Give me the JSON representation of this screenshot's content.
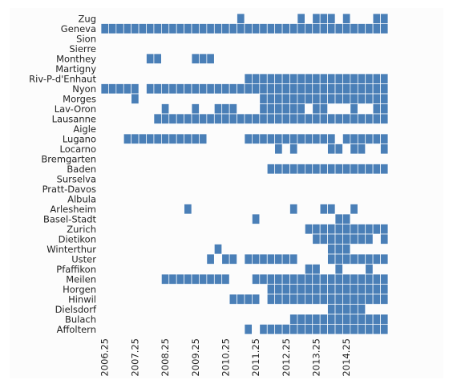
{
  "chart_data": {
    "type": "heatmap",
    "title": "",
    "xlabel": "",
    "ylabel": "",
    "color": "#4a7fb7",
    "x_start": 2006.25,
    "x_step": 0.25,
    "n_cols": 38,
    "x_tick_labels": [
      "2006.25",
      "2007.25",
      "2008.25",
      "2009.25",
      "2010.25",
      "2011.25",
      "2012.25",
      "2013.25",
      "2014.25"
    ],
    "rows": [
      {
        "label": "Zug",
        "filled": [
          18,
          26,
          28,
          29,
          30,
          32,
          36,
          37
        ]
      },
      {
        "label": "Geneva",
        "filled": [
          [
            0,
            37
          ]
        ]
      },
      {
        "label": "Sion",
        "filled": []
      },
      {
        "label": "Sierre",
        "filled": []
      },
      {
        "label": "Monthey",
        "filled": [
          6,
          7,
          12,
          13,
          14
        ]
      },
      {
        "label": "Martigny",
        "filled": []
      },
      {
        "label": "Riv-P-d'Enhaut",
        "filled": [
          [
            19,
            37
          ]
        ]
      },
      {
        "label": "Nyon",
        "filled": [
          [
            0,
            4
          ],
          [
            6,
            37
          ]
        ]
      },
      {
        "label": "Morges",
        "filled": [
          4,
          [
            21,
            37
          ]
        ]
      },
      {
        "label": "Lav-Oron",
        "filled": [
          8,
          12,
          15,
          16,
          17,
          [
            21,
            26
          ],
          28,
          29,
          33,
          36,
          37
        ]
      },
      {
        "label": "Lausanne",
        "filled": [
          [
            7,
            37
          ]
        ]
      },
      {
        "label": "Aigle",
        "filled": []
      },
      {
        "label": "Lugano",
        "filled": [
          [
            3,
            13
          ],
          [
            19,
            30
          ],
          [
            32,
            37
          ]
        ]
      },
      {
        "label": "Locarno",
        "filled": [
          23,
          25,
          30,
          31,
          33,
          34,
          37
        ]
      },
      {
        "label": "Bremgarten",
        "filled": []
      },
      {
        "label": "Baden",
        "filled": [
          [
            22,
            37
          ]
        ]
      },
      {
        "label": "Surselva",
        "filled": []
      },
      {
        "label": "Pratt-Davos",
        "filled": []
      },
      {
        "label": "Albula",
        "filled": []
      },
      {
        "label": "Arlesheim",
        "filled": [
          11,
          25,
          29,
          30,
          33
        ]
      },
      {
        "label": "Basel-Stadt",
        "filled": [
          20,
          31,
          32
        ]
      },
      {
        "label": "Zurich",
        "filled": [
          [
            27,
            37
          ]
        ]
      },
      {
        "label": "Dietikon",
        "filled": [
          [
            28,
            35
          ],
          37
        ]
      },
      {
        "label": "Winterthur",
        "filled": [
          15,
          30,
          31,
          32
        ]
      },
      {
        "label": "Uster",
        "filled": [
          14,
          16,
          17,
          [
            19,
            25
          ],
          [
            30,
            37
          ]
        ]
      },
      {
        "label": "Pfaffikon",
        "filled": [
          27,
          28,
          31,
          35
        ]
      },
      {
        "label": "Meilen",
        "filled": [
          [
            8,
            16
          ],
          [
            20,
            37
          ]
        ]
      },
      {
        "label": "Horgen",
        "filled": [
          [
            22,
            37
          ]
        ]
      },
      {
        "label": "Hinwil",
        "filled": [
          17,
          18,
          19,
          20,
          [
            22,
            37
          ]
        ]
      },
      {
        "label": "Dielsdorf",
        "filled": [
          [
            30,
            34
          ]
        ]
      },
      {
        "label": "Bulach",
        "filled": [
          [
            25,
            37
          ]
        ]
      },
      {
        "label": "Affoltern",
        "filled": [
          19,
          [
            21,
            34
          ],
          35,
          36,
          37
        ]
      }
    ]
  }
}
